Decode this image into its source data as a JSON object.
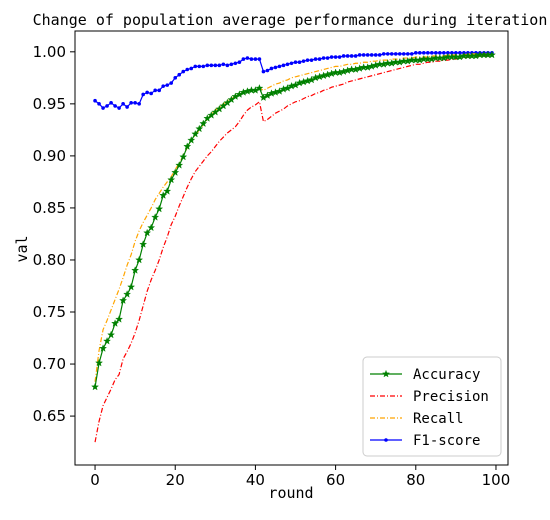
{
  "chart_data": {
    "type": "line",
    "title": "Change of population average performance during iteration",
    "xlabel": "round",
    "ylabel": "val",
    "xlim": [
      -5,
      103
    ],
    "ylim": [
      0.603,
      1.02
    ],
    "x_ticks": [
      "0",
      "20",
      "40",
      "60",
      "80",
      "100"
    ],
    "y_ticks": [
      "0.65",
      "0.70",
      "0.75",
      "0.80",
      "0.85",
      "0.90",
      "0.95",
      "1.00"
    ],
    "grid": false,
    "legend_position": "lower right",
    "series": [
      {
        "name": "Accuracy",
        "color": "#008000",
        "style": "solid",
        "marker": "star",
        "x": [
          0,
          1,
          2,
          3,
          4,
          5,
          6,
          7,
          8,
          9,
          10,
          11,
          12,
          13,
          14,
          15,
          16,
          17,
          18,
          19,
          20,
          21,
          22,
          23,
          24,
          25,
          26,
          27,
          28,
          29,
          30,
          31,
          32,
          33,
          34,
          35,
          36,
          37,
          38,
          39,
          40,
          41,
          42,
          43,
          44,
          45,
          46,
          47,
          48,
          49,
          50,
          51,
          52,
          53,
          54,
          55,
          56,
          57,
          58,
          59,
          60,
          61,
          62,
          63,
          64,
          65,
          66,
          67,
          68,
          69,
          70,
          71,
          72,
          73,
          74,
          75,
          76,
          77,
          78,
          79,
          80,
          81,
          82,
          83,
          84,
          85,
          86,
          87,
          88,
          89,
          90,
          91,
          92,
          93,
          94,
          95,
          96,
          97,
          98,
          99
        ],
        "values": [
          0.678,
          0.701,
          0.715,
          0.722,
          0.728,
          0.739,
          0.743,
          0.761,
          0.767,
          0.774,
          0.79,
          0.8,
          0.815,
          0.826,
          0.831,
          0.841,
          0.849,
          0.862,
          0.866,
          0.877,
          0.884,
          0.891,
          0.899,
          0.909,
          0.915,
          0.921,
          0.926,
          0.931,
          0.936,
          0.939,
          0.942,
          0.945,
          0.948,
          0.951,
          0.954,
          0.957,
          0.959,
          0.961,
          0.962,
          0.963,
          0.963,
          0.965,
          0.956,
          0.958,
          0.96,
          0.961,
          0.962,
          0.964,
          0.965,
          0.967,
          0.968,
          0.97,
          0.971,
          0.972,
          0.973,
          0.975,
          0.976,
          0.977,
          0.978,
          0.979,
          0.98,
          0.98,
          0.981,
          0.982,
          0.983,
          0.983,
          0.984,
          0.985,
          0.985,
          0.986,
          0.987,
          0.988,
          0.988,
          0.989,
          0.989,
          0.99,
          0.99,
          0.991,
          0.991,
          0.992,
          0.992,
          0.992,
          0.993,
          0.993,
          0.993,
          0.994,
          0.994,
          0.994,
          0.995,
          0.995,
          0.995,
          0.995,
          0.996,
          0.996,
          0.996,
          0.996,
          0.997,
          0.997,
          0.997,
          0.997
        ]
      },
      {
        "name": "Precision",
        "color": "#ff0000",
        "style": "dashdot",
        "marker": "none",
        "x": [
          0,
          1,
          2,
          3,
          4,
          5,
          6,
          7,
          8,
          9,
          10,
          11,
          12,
          13,
          14,
          15,
          16,
          17,
          18,
          19,
          20,
          21,
          22,
          23,
          24,
          25,
          26,
          27,
          28,
          29,
          30,
          31,
          32,
          33,
          34,
          35,
          36,
          37,
          38,
          39,
          40,
          41,
          42,
          43,
          44,
          45,
          46,
          47,
          48,
          49,
          50,
          51,
          52,
          53,
          54,
          55,
          56,
          57,
          58,
          59,
          60,
          61,
          62,
          63,
          64,
          65,
          66,
          67,
          68,
          69,
          70,
          71,
          72,
          73,
          74,
          75,
          76,
          77,
          78,
          79,
          80,
          81,
          82,
          83,
          84,
          85,
          86,
          87,
          88,
          89,
          90,
          91,
          92,
          93,
          94,
          95,
          96,
          97,
          98,
          99
        ],
        "values": [
          0.625,
          0.645,
          0.66,
          0.668,
          0.676,
          0.685,
          0.69,
          0.705,
          0.712,
          0.72,
          0.73,
          0.742,
          0.756,
          0.77,
          0.781,
          0.79,
          0.8,
          0.812,
          0.822,
          0.834,
          0.842,
          0.852,
          0.861,
          0.87,
          0.878,
          0.885,
          0.89,
          0.895,
          0.9,
          0.904,
          0.909,
          0.914,
          0.918,
          0.922,
          0.925,
          0.928,
          0.933,
          0.939,
          0.944,
          0.947,
          0.949,
          0.952,
          0.933,
          0.935,
          0.938,
          0.941,
          0.943,
          0.945,
          0.948,
          0.95,
          0.952,
          0.953,
          0.955,
          0.957,
          0.958,
          0.96,
          0.961,
          0.963,
          0.964,
          0.966,
          0.967,
          0.968,
          0.969,
          0.971,
          0.972,
          0.973,
          0.974,
          0.975,
          0.976,
          0.977,
          0.978,
          0.979,
          0.98,
          0.981,
          0.982,
          0.983,
          0.984,
          0.985,
          0.986,
          0.987,
          0.988,
          0.988,
          0.989,
          0.99,
          0.99,
          0.991,
          0.991,
          0.992,
          0.992,
          0.993,
          0.993,
          0.994,
          0.994,
          0.995,
          0.995,
          0.995,
          0.996,
          0.996,
          0.996,
          0.997
        ]
      },
      {
        "name": "Recall",
        "color": "#ffa500",
        "style": "dashdot",
        "marker": "none",
        "x": [
          0,
          1,
          2,
          3,
          4,
          5,
          6,
          7,
          8,
          9,
          10,
          11,
          12,
          13,
          14,
          15,
          16,
          17,
          18,
          19,
          20,
          21,
          22,
          23,
          24,
          25,
          26,
          27,
          28,
          29,
          30,
          31,
          32,
          33,
          34,
          35,
          36,
          37,
          38,
          39,
          40,
          41,
          42,
          43,
          44,
          45,
          46,
          47,
          48,
          49,
          50,
          51,
          52,
          53,
          54,
          55,
          56,
          57,
          58,
          59,
          60,
          61,
          62,
          63,
          64,
          65,
          66,
          67,
          68,
          69,
          70,
          71,
          72,
          73,
          74,
          75,
          76,
          77,
          78,
          79,
          80,
          81,
          82,
          83,
          84,
          85,
          86,
          87,
          88,
          89,
          90,
          91,
          92,
          93,
          94,
          95,
          96,
          97,
          98,
          99
        ],
        "values": [
          0.683,
          0.713,
          0.733,
          0.742,
          0.752,
          0.762,
          0.772,
          0.783,
          0.795,
          0.805,
          0.818,
          0.828,
          0.836,
          0.843,
          0.85,
          0.858,
          0.864,
          0.87,
          0.875,
          0.88,
          0.887,
          0.893,
          0.9,
          0.908,
          0.915,
          0.92,
          0.925,
          0.93,
          0.935,
          0.94,
          0.944,
          0.947,
          0.95,
          0.953,
          0.955,
          0.957,
          0.959,
          0.961,
          0.962,
          0.963,
          0.964,
          0.965,
          0.963,
          0.965,
          0.967,
          0.969,
          0.97,
          0.972,
          0.973,
          0.975,
          0.976,
          0.977,
          0.978,
          0.979,
          0.98,
          0.981,
          0.982,
          0.983,
          0.984,
          0.985,
          0.986,
          0.986,
          0.987,
          0.988,
          0.988,
          0.989,
          0.989,
          0.99,
          0.99,
          0.991,
          0.991,
          0.992,
          0.992,
          0.992,
          0.993,
          0.993,
          0.993,
          0.994,
          0.994,
          0.994,
          0.995,
          0.995,
          0.995,
          0.995,
          0.996,
          0.996,
          0.996,
          0.996,
          0.997,
          0.997,
          0.997,
          0.997,
          0.997,
          0.998,
          0.998,
          0.998,
          0.998,
          0.998,
          0.998,
          0.998
        ]
      },
      {
        "name": "F1-score",
        "color": "#0000ff",
        "style": "solid",
        "marker": "dot",
        "x": [
          0,
          1,
          2,
          3,
          4,
          5,
          6,
          7,
          8,
          9,
          10,
          11,
          12,
          13,
          14,
          15,
          16,
          17,
          18,
          19,
          20,
          21,
          22,
          23,
          24,
          25,
          26,
          27,
          28,
          29,
          30,
          31,
          32,
          33,
          34,
          35,
          36,
          37,
          38,
          39,
          40,
          41,
          42,
          43,
          44,
          45,
          46,
          47,
          48,
          49,
          50,
          51,
          52,
          53,
          54,
          55,
          56,
          57,
          58,
          59,
          60,
          61,
          62,
          63,
          64,
          65,
          66,
          67,
          68,
          69,
          70,
          71,
          72,
          73,
          74,
          75,
          76,
          77,
          78,
          79,
          80,
          81,
          82,
          83,
          84,
          85,
          86,
          87,
          88,
          89,
          90,
          91,
          92,
          93,
          94,
          95,
          96,
          97,
          98,
          99
        ],
        "values": [
          0.953,
          0.95,
          0.946,
          0.948,
          0.951,
          0.948,
          0.946,
          0.95,
          0.947,
          0.951,
          0.951,
          0.95,
          0.959,
          0.961,
          0.96,
          0.963,
          0.963,
          0.967,
          0.968,
          0.97,
          0.975,
          0.978,
          0.981,
          0.983,
          0.984,
          0.986,
          0.986,
          0.986,
          0.987,
          0.987,
          0.987,
          0.987,
          0.988,
          0.987,
          0.988,
          0.989,
          0.99,
          0.993,
          0.994,
          0.993,
          0.993,
          0.993,
          0.981,
          0.982,
          0.984,
          0.985,
          0.986,
          0.987,
          0.988,
          0.989,
          0.99,
          0.99,
          0.991,
          0.992,
          0.992,
          0.993,
          0.993,
          0.994,
          0.994,
          0.995,
          0.995,
          0.995,
          0.996,
          0.996,
          0.996,
          0.996,
          0.997,
          0.997,
          0.997,
          0.997,
          0.997,
          0.997,
          0.998,
          0.998,
          0.998,
          0.998,
          0.998,
          0.998,
          0.998,
          0.998,
          0.999,
          0.999,
          0.999,
          0.999,
          0.999,
          0.999,
          0.999,
          0.999,
          0.999,
          0.999,
          0.999,
          0.999,
          0.999,
          0.999,
          0.999,
          0.999,
          0.999,
          0.999,
          0.999,
          0.999
        ]
      }
    ]
  }
}
